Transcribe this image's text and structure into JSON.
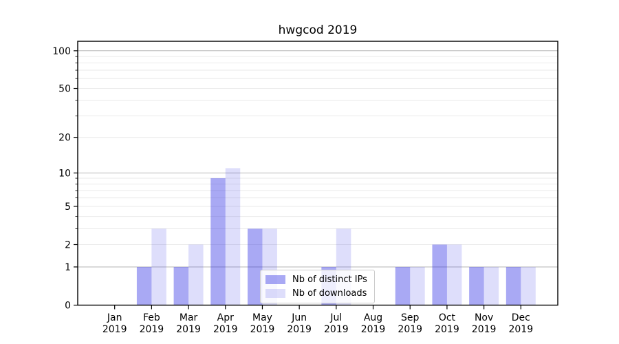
{
  "chart_data": {
    "type": "bar",
    "title": "hwgcod 2019",
    "x_tick_year": "2019",
    "categories": [
      "Jan",
      "Feb",
      "Mar",
      "Apr",
      "May",
      "Jun",
      "Jul",
      "Aug",
      "Sep",
      "Oct",
      "Nov",
      "Dec"
    ],
    "series": [
      {
        "name": "Nb of distinct IPs",
        "color": "rgba(30,30,225,0.38)",
        "values": [
          0,
          1,
          1,
          9,
          3,
          0,
          1,
          0,
          1,
          2,
          1,
          1
        ]
      },
      {
        "name": "Nb of downloads",
        "color": "rgba(30,30,225,0.145)",
        "values": [
          0,
          3,
          2,
          11,
          3,
          0,
          3,
          0,
          1,
          2,
          1,
          1
        ]
      }
    ],
    "y_axis": {
      "ticks": [
        0,
        1,
        2,
        5,
        10,
        20,
        50,
        100
      ],
      "minor_gridlines": [
        3,
        4,
        6,
        7,
        8,
        9,
        30,
        40,
        60,
        70,
        80,
        90
      ],
      "emphasized_gridlines": [
        1,
        10,
        100
      ],
      "scale": "log10(1+y)",
      "top": 119
    },
    "xlabel": "",
    "ylabel": "",
    "grid": "on",
    "legend_position": "lower center"
  },
  "style": {
    "grid_major_color": "#b6b6b6",
    "grid_minor_color": "#eaeaea",
    "axis_color": "#000000",
    "background": "#ffffff"
  }
}
